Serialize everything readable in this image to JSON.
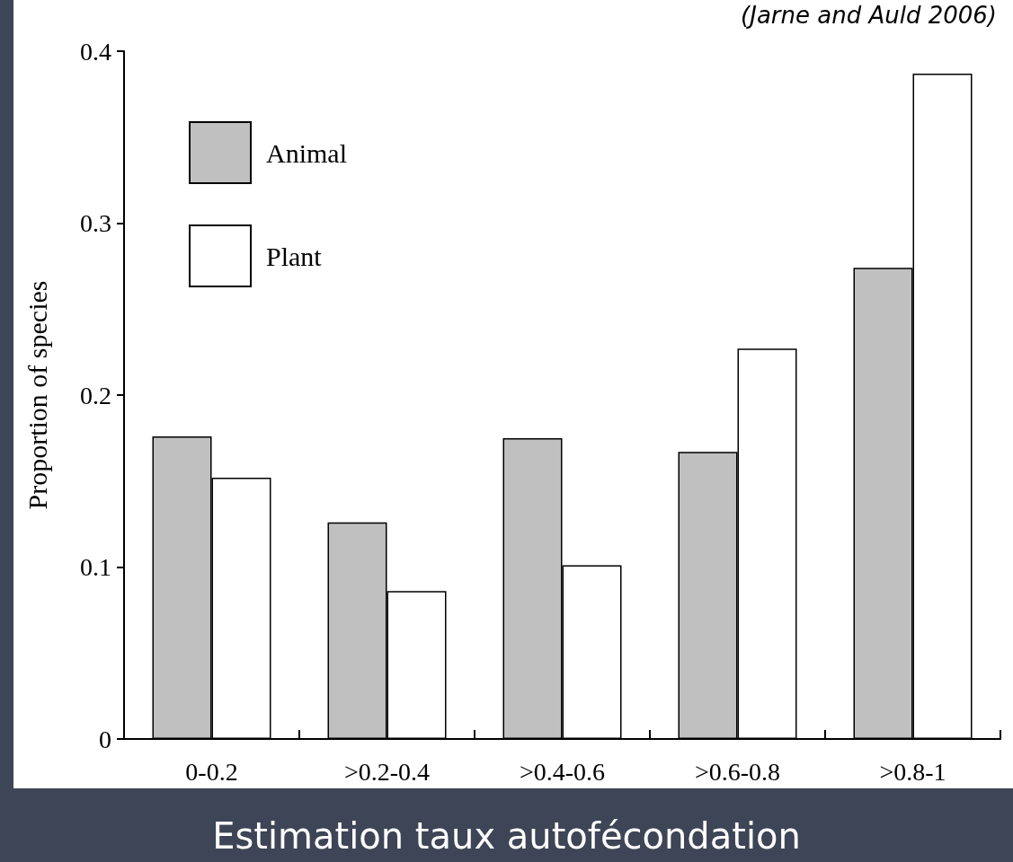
{
  "chart_data": {
    "type": "bar",
    "title": "Estimation taux autofécondation",
    "ylabel": "Proportion of species",
    "annotations": [
      "(Jarne and Auld 2006)"
    ],
    "categories": [
      "0-0.2",
      ">0.2-0.4",
      ">0.4-0.6",
      ">0.6-0.8",
      ">0.8-1"
    ],
    "series": [
      {
        "name": "Animal",
        "color": "#c0c0c0",
        "values": [
          0.176,
          0.126,
          0.175,
          0.167,
          0.274
        ]
      },
      {
        "name": "Plant",
        "color": "#ffffff",
        "values": [
          0.152,
          0.086,
          0.101,
          0.227,
          0.387
        ]
      }
    ],
    "ylim": [
      0,
      0.4
    ],
    "yticks": [
      0,
      0.1,
      0.2,
      0.3,
      0.4
    ],
    "grid": false,
    "legend": "top left"
  }
}
